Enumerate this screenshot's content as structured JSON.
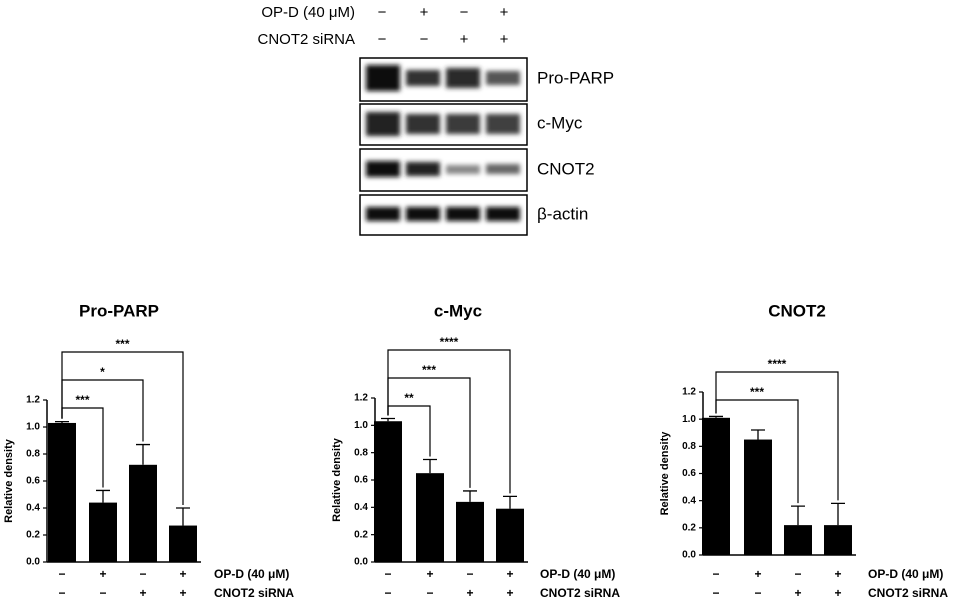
{
  "blot": {
    "conditions": [
      {
        "name": "OP-D (40 μM)",
        "signs": [
          "−",
          "+",
          "−",
          "+"
        ]
      },
      {
        "name": "CNOT2 siRNA",
        "signs": [
          "−",
          "−",
          "+",
          "+"
        ]
      }
    ],
    "bands": [
      "Pro-PARP",
      "c-Myc",
      "CNOT2",
      "β-actin"
    ]
  },
  "chart_data": [
    {
      "type": "bar",
      "title": "Pro-PARP",
      "ylabel": "Relative density",
      "color": "#000000",
      "categories": [
        null,
        null,
        null,
        null
      ],
      "values": [
        1.03,
        0.44,
        0.72,
        0.27
      ],
      "errors": [
        0.01,
        0.09,
        0.15,
        0.13
      ],
      "ylim": [
        0,
        1.2
      ],
      "yticks": [
        {
          "value": 0,
          "label": "0.0"
        },
        {
          "value": 0.2,
          "label": "0.2"
        },
        {
          "value": 0.4,
          "label": "0.4"
        },
        {
          "value": 0.6,
          "label": "0.6"
        },
        {
          "value": 0.8,
          "label": "0.8"
        },
        {
          "value": 1,
          "label": "1.0"
        },
        {
          "value": 1.2,
          "label": "1.2"
        }
      ],
      "conditions": [
        {
          "name": "OP-D (40 μM)",
          "signs": [
            "−",
            "+",
            "−",
            "+"
          ]
        },
        {
          "name": "CNOT2 siRNA",
          "signs": [
            "−",
            "−",
            "+",
            "+"
          ]
        }
      ],
      "significance": [
        {
          "to": 1,
          "label": "***"
        },
        {
          "to": 2,
          "label": "*"
        },
        {
          "to": 3,
          "label": "***"
        }
      ]
    },
    {
      "type": "bar",
      "title": "c-Myc",
      "ylabel": "Relative density",
      "color": "#000000",
      "categories": [
        null,
        null,
        null,
        null
      ],
      "values": [
        1.03,
        0.65,
        0.44,
        0.39
      ],
      "errors": [
        0.02,
        0.1,
        0.08,
        0.09
      ],
      "ylim": [
        0,
        1.2
      ],
      "yticks": [
        {
          "value": 0,
          "label": "0.0"
        },
        {
          "value": 0.2,
          "label": "0.2"
        },
        {
          "value": 0.4,
          "label": "0.4"
        },
        {
          "value": 0.6,
          "label": "0.6"
        },
        {
          "value": 0.8,
          "label": "0.8"
        },
        {
          "value": 1,
          "label": "1.0"
        },
        {
          "value": 1.2,
          "label": "1.2"
        }
      ],
      "conditions": [
        {
          "name": "OP-D (40 μM)",
          "signs": [
            "−",
            "+",
            "−",
            "+"
          ]
        },
        {
          "name": "CNOT2 siRNA",
          "signs": [
            "−",
            "−",
            "+",
            "+"
          ]
        }
      ],
      "significance": [
        {
          "to": 1,
          "label": "**"
        },
        {
          "to": 2,
          "label": "***"
        },
        {
          "to": 3,
          "label": "****"
        }
      ]
    },
    {
      "type": "bar",
      "title": "CNOT2",
      "ylabel": "Relative density",
      "color": "#000000",
      "categories": [
        null,
        null,
        null,
        null
      ],
      "values": [
        1.01,
        0.85,
        0.22,
        0.22
      ],
      "errors": [
        0.01,
        0.07,
        0.14,
        0.16
      ],
      "ylim": [
        0,
        1.2
      ],
      "yticks": [
        {
          "value": 0,
          "label": "0.0"
        },
        {
          "value": 0.2,
          "label": "0.2"
        },
        {
          "value": 0.4,
          "label": "0.4"
        },
        {
          "value": 0.6,
          "label": "0.6"
        },
        {
          "value": 0.8,
          "label": "0.8"
        },
        {
          "value": 1,
          "label": "1.0"
        },
        {
          "value": 1.2,
          "label": "1.2"
        }
      ],
      "conditions": [
        {
          "name": "OP-D (40 μM)",
          "signs": [
            "−",
            "+",
            "−",
            "+"
          ]
        },
        {
          "name": "CNOT2 siRNA",
          "signs": [
            "−",
            "−",
            "+",
            "+"
          ]
        }
      ],
      "significance": [
        {
          "to": 2,
          "label": "***"
        },
        {
          "to": 3,
          "label": "****"
        }
      ]
    }
  ]
}
